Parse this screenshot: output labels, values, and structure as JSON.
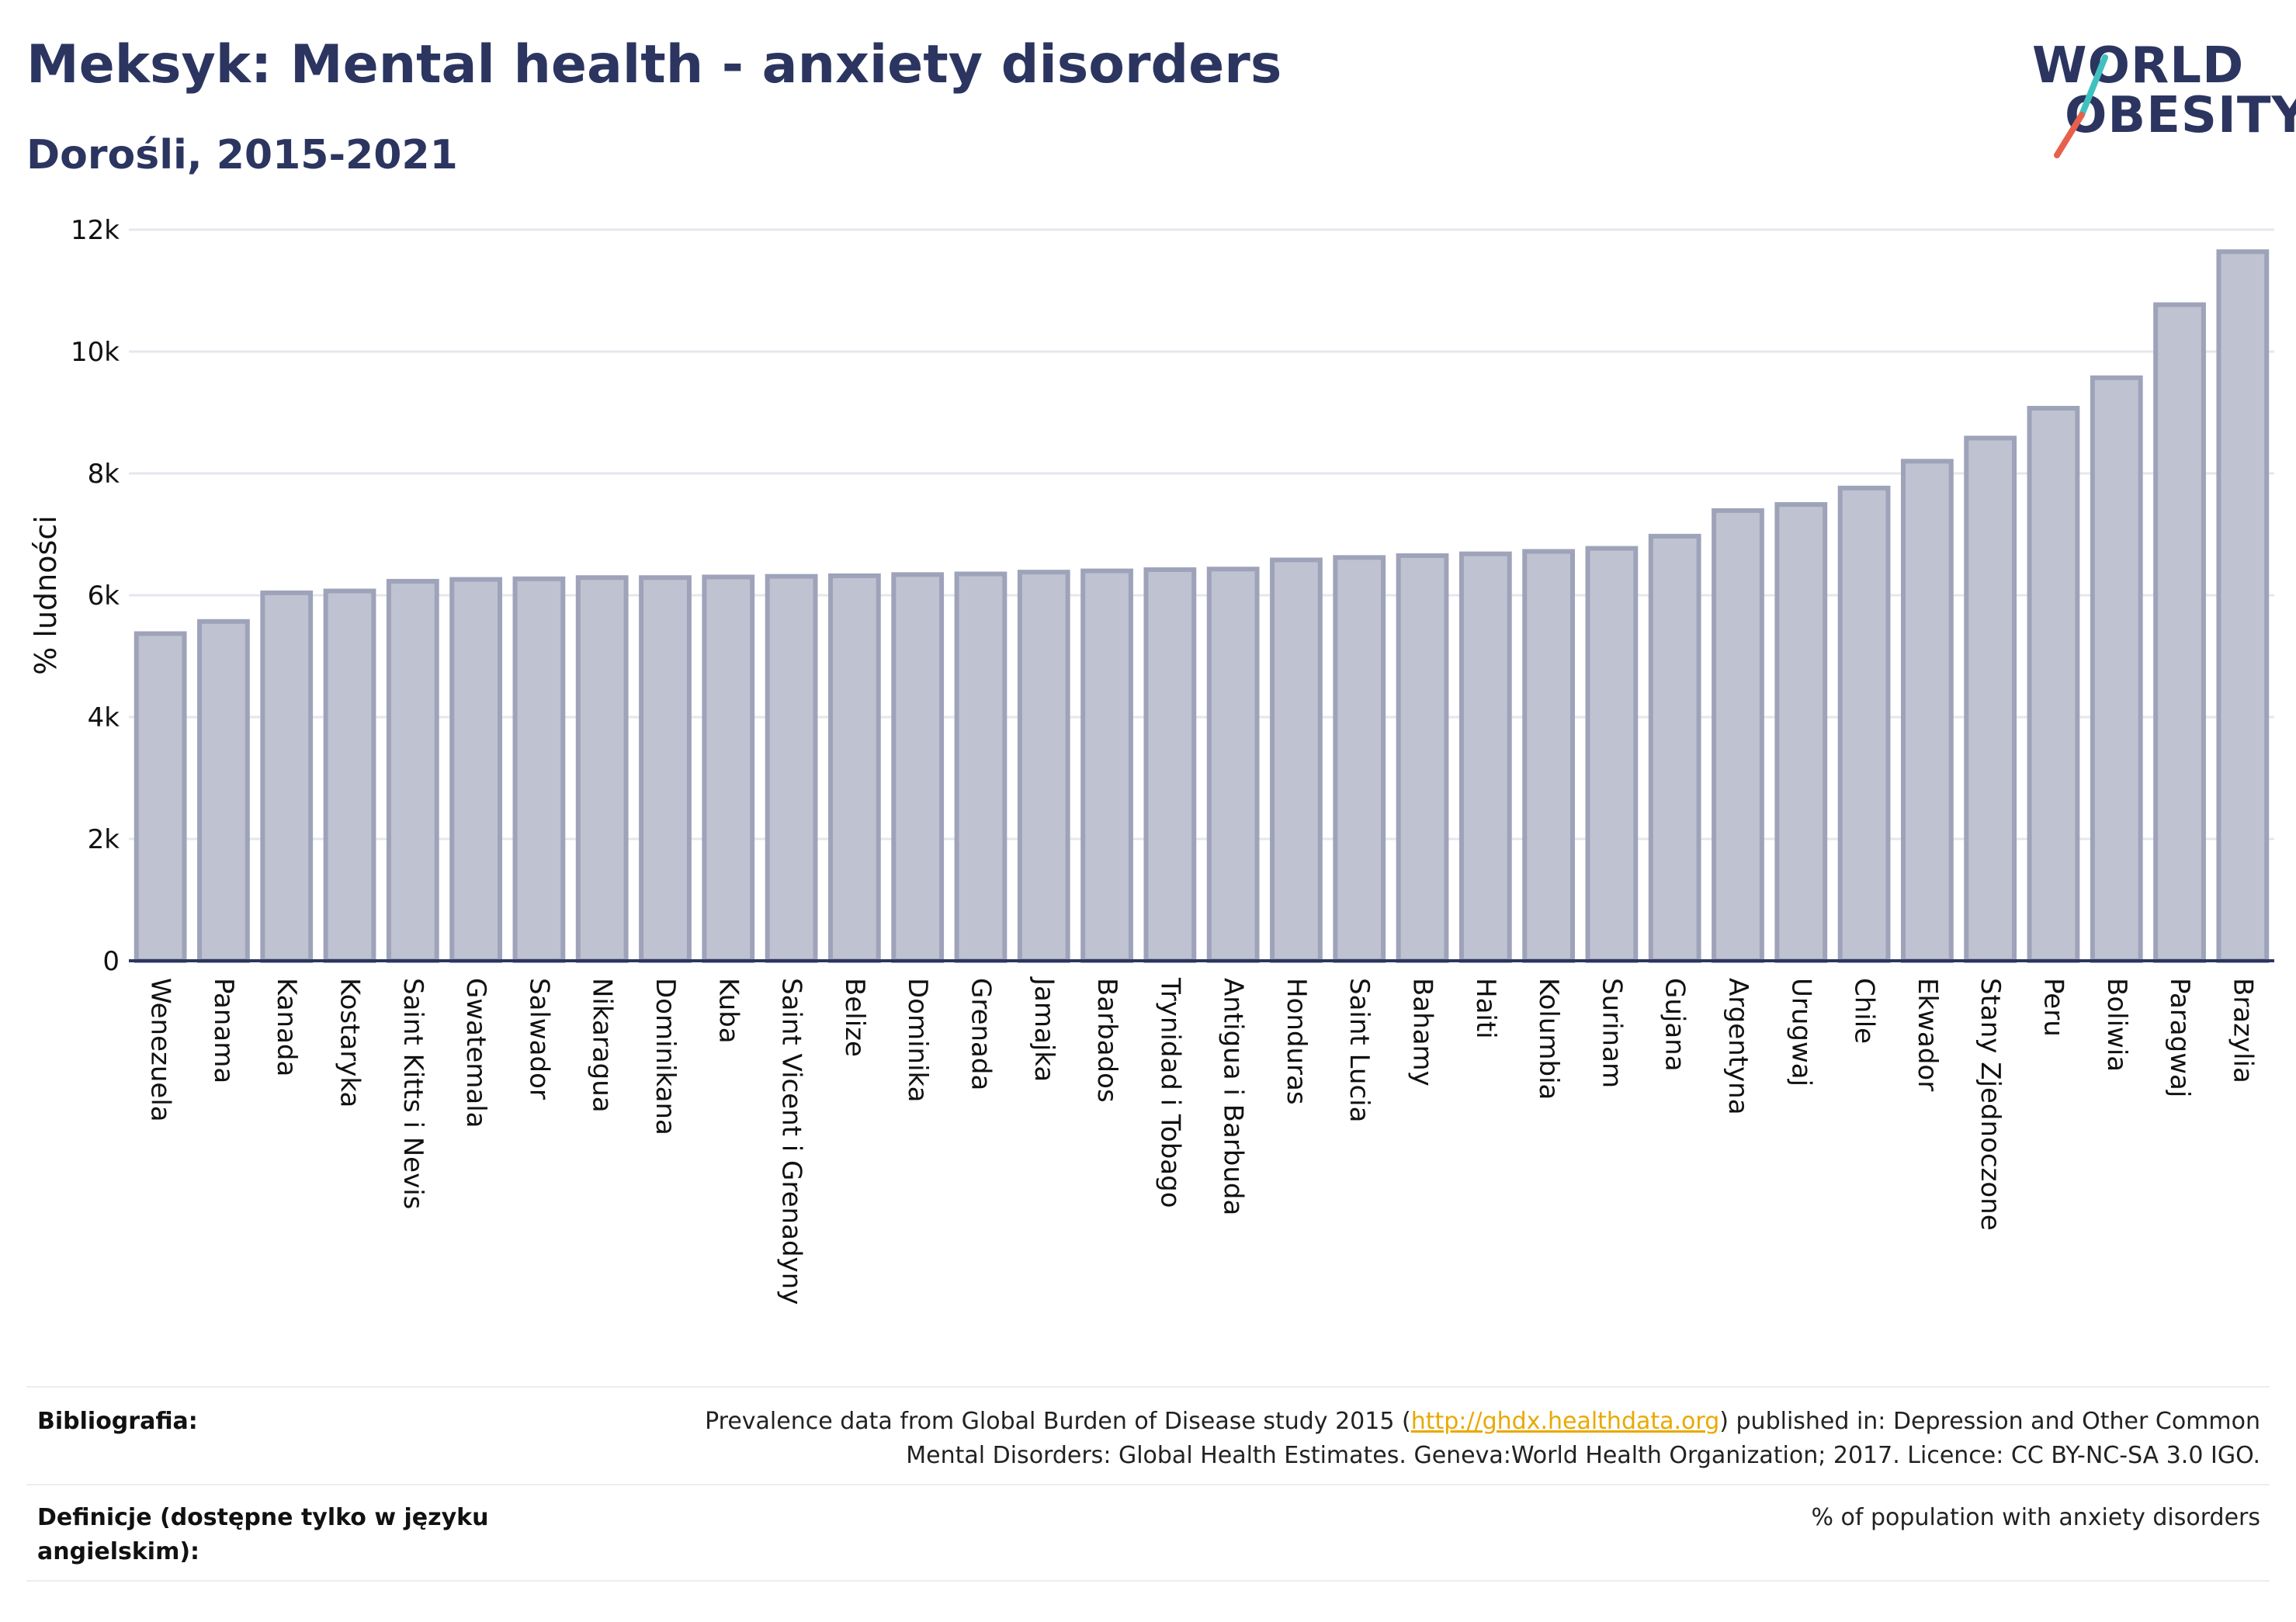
{
  "header": {
    "title": "Meksyk: Mental health - anxiety disorders",
    "subtitle": "Dorośli, 2015-2021"
  },
  "logo": {
    "line1": "WORLD",
    "line2": "OBESITY",
    "slash_colors": [
      "#3fc1c0",
      "#e8604c"
    ]
  },
  "chart_data": {
    "type": "bar",
    "ylabel": "% ludności",
    "xlabel": "",
    "ylim": [
      0,
      12000
    ],
    "yticks": [
      0,
      2000,
      4000,
      6000,
      8000,
      10000,
      12000
    ],
    "ytick_labels": [
      "0",
      "2k",
      "4k",
      "6k",
      "8k",
      "10k",
      "12k"
    ],
    "grid": true,
    "bar_color": "#bfc2d0",
    "bar_edge_color": "#9ea3ba",
    "categories": [
      "Wenezuela",
      "Panama",
      "Kanada",
      "Kostaryka",
      "Saint Kitts i Nevis",
      "Gwatemala",
      "Salwador",
      "Nikaragua",
      "Dominikana",
      "Kuba",
      "Saint Vicent i Grenadyny",
      "Belize",
      "Dominika",
      "Grenada",
      "Jamajka",
      "Barbados",
      "Trynidad i Tobago",
      "Antigua i Barbuda",
      "Honduras",
      "Saint Lucia",
      "Bahamy",
      "Haiti",
      "Kolumbia",
      "Surinam",
      "Gujana",
      "Argentyna",
      "Urugwaj",
      "Chile",
      "Ekwador",
      "Stany Zjednoczone",
      "Peru",
      "Boliwia",
      "Paragwaj",
      "Brazylia"
    ],
    "values": [
      5370,
      5570,
      6040,
      6070,
      6230,
      6260,
      6270,
      6290,
      6290,
      6300,
      6310,
      6320,
      6340,
      6350,
      6380,
      6400,
      6420,
      6430,
      6580,
      6620,
      6650,
      6680,
      6720,
      6770,
      6970,
      7390,
      7490,
      7760,
      8200,
      8580,
      9070,
      9570,
      10770,
      11640
    ]
  },
  "footer": {
    "bibliography_label": "Bibliografia:",
    "bibliography_pre": "Prevalence data from Global Burden of Disease study 2015 (",
    "bibliography_link": "http://ghdx.healthdata.org",
    "bibliography_post": ") published in: Depression and Other Common",
    "bibliography_line2": "Mental Disorders: Global Health Estimates. Geneva:World Health Organization; 2017. Licence: CC BY-NC-SA 3.0 IGO.",
    "definitions_label_line1": "Definicje (dostępne tylko w języku",
    "definitions_label_line2": "angielskim):",
    "definitions_text": "% of population with anxiety disorders"
  }
}
